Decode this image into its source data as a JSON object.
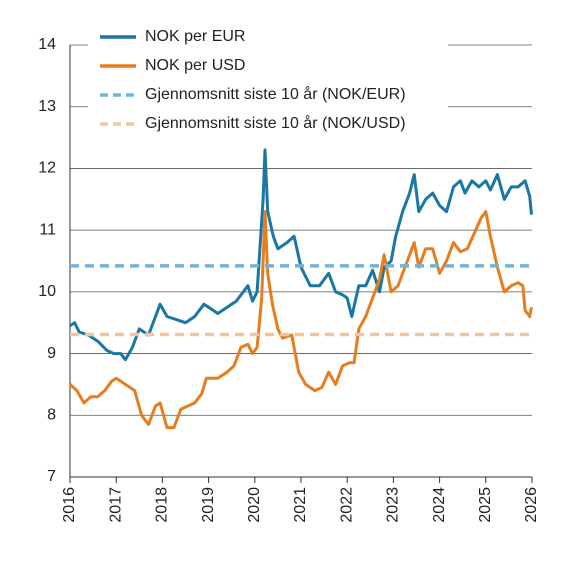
{
  "chart_data": {
    "type": "line",
    "xlim": [
      2016,
      2026
    ],
    "xticks": [
      2016,
      2017,
      2018,
      2019,
      2020,
      2021,
      2022,
      2023,
      2024,
      2025,
      2026
    ],
    "ylim": [
      7,
      14
    ],
    "yticks": [
      7,
      8,
      9,
      10,
      11,
      12,
      13,
      14
    ],
    "grid": true,
    "legend": "top-left",
    "series": [
      {
        "name": "NOK per EUR",
        "color": "#1a77a3",
        "x": [
          2016.0,
          2016.1,
          2016.2,
          2016.4,
          2016.6,
          2016.8,
          2016.95,
          2017.1,
          2017.2,
          2017.35,
          2017.5,
          2017.7,
          2017.85,
          2017.95,
          2018.1,
          2018.3,
          2018.5,
          2018.7,
          2018.9,
          2019.0,
          2019.2,
          2019.4,
          2019.6,
          2019.75,
          2019.85,
          2019.95,
          2020.05,
          2020.18,
          2020.22,
          2020.28,
          2020.4,
          2020.5,
          2020.7,
          2020.85,
          2021.0,
          2021.2,
          2021.4,
          2021.6,
          2021.75,
          2021.9,
          2022.0,
          2022.1,
          2022.25,
          2022.4,
          2022.55,
          2022.7,
          2022.8,
          2022.95,
          2023.05,
          2023.2,
          2023.35,
          2023.45,
          2023.55,
          2023.7,
          2023.85,
          2024.0,
          2024.15,
          2024.3,
          2024.45,
          2024.55,
          2024.7,
          2024.85,
          2025.0,
          2025.1,
          2025.25,
          2025.4,
          2025.55,
          2025.7,
          2025.85,
          2025.95,
          2025.99
        ],
        "values": [
          9.45,
          9.5,
          9.35,
          9.3,
          9.2,
          9.05,
          9.0,
          9.0,
          8.9,
          9.1,
          9.4,
          9.3,
          9.6,
          9.8,
          9.6,
          9.55,
          9.5,
          9.6,
          9.8,
          9.75,
          9.65,
          9.75,
          9.85,
          10.0,
          10.1,
          9.85,
          10.0,
          11.5,
          12.3,
          11.3,
          10.9,
          10.7,
          10.8,
          10.9,
          10.4,
          10.1,
          10.1,
          10.3,
          10.0,
          9.95,
          9.9,
          9.6,
          10.1,
          10.1,
          10.35,
          10.0,
          10.4,
          10.5,
          10.9,
          11.3,
          11.6,
          11.9,
          11.3,
          11.5,
          11.6,
          11.4,
          11.3,
          11.7,
          11.8,
          11.6,
          11.8,
          11.7,
          11.8,
          11.65,
          11.9,
          11.5,
          11.7,
          11.7,
          11.8,
          11.55,
          11.25
        ]
      },
      {
        "name": "NOK per USD",
        "color": "#e87d1e",
        "x": [
          2016.0,
          2016.15,
          2016.3,
          2016.45,
          2016.6,
          2016.75,
          2016.9,
          2017.0,
          2017.2,
          2017.4,
          2017.55,
          2017.7,
          2017.85,
          2017.95,
          2018.1,
          2018.25,
          2018.4,
          2018.55,
          2018.7,
          2018.85,
          2018.95,
          2019.05,
          2019.2,
          2019.4,
          2019.55,
          2019.7,
          2019.85,
          2019.95,
          2020.05,
          2020.15,
          2020.22,
          2020.28,
          2020.38,
          2020.5,
          2020.6,
          2020.8,
          2020.95,
          2021.1,
          2021.3,
          2021.45,
          2021.6,
          2021.75,
          2021.9,
          2022.05,
          2022.15,
          2022.25,
          2022.4,
          2022.55,
          2022.7,
          2022.8,
          2022.95,
          2023.1,
          2023.3,
          2023.45,
          2023.55,
          2023.7,
          2023.85,
          2024.0,
          2024.15,
          2024.3,
          2024.45,
          2024.6,
          2024.75,
          2024.9,
          2025.0,
          2025.1,
          2025.25,
          2025.4,
          2025.55,
          2025.7,
          2025.8,
          2025.85,
          2025.95,
          2025.99
        ],
        "values": [
          8.5,
          8.4,
          8.2,
          8.3,
          8.3,
          8.4,
          8.55,
          8.6,
          8.5,
          8.4,
          8.0,
          7.85,
          8.15,
          8.2,
          7.8,
          7.8,
          8.1,
          8.15,
          8.2,
          8.35,
          8.6,
          8.6,
          8.6,
          8.7,
          8.8,
          9.1,
          9.15,
          9.0,
          9.1,
          9.9,
          11.3,
          10.3,
          9.8,
          9.4,
          9.25,
          9.3,
          8.7,
          8.5,
          8.4,
          8.45,
          8.7,
          8.5,
          8.8,
          8.85,
          8.85,
          9.4,
          9.6,
          9.9,
          10.2,
          10.6,
          10.0,
          10.1,
          10.5,
          10.8,
          10.4,
          10.7,
          10.7,
          10.3,
          10.5,
          10.8,
          10.65,
          10.7,
          10.95,
          11.2,
          11.3,
          10.9,
          10.4,
          10.0,
          10.1,
          10.15,
          10.1,
          9.7,
          9.6,
          9.75
        ]
      },
      {
        "name": "Gjennomsnitt siste 10 år (NOK/EUR)",
        "color": "#6fb6d6",
        "dashed": true,
        "values": [
          10.42
        ]
      },
      {
        "name": "Gjennomsnitt siste 10 år (NOK/USD)",
        "color": "#f5c39a",
        "dashed": true,
        "values": [
          9.31
        ]
      }
    ]
  }
}
